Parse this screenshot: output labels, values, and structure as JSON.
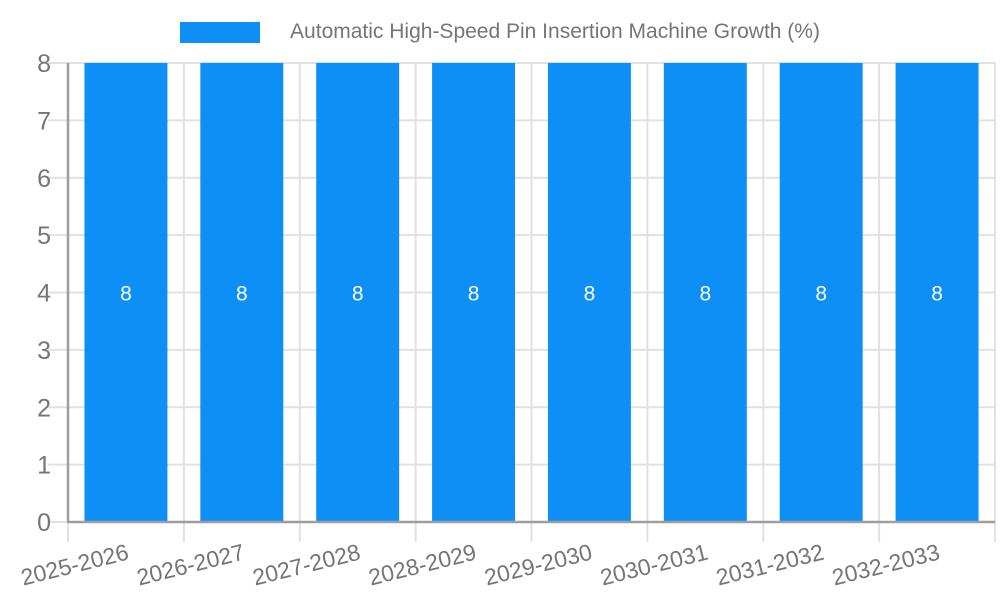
{
  "legend": {
    "label": "Automatic High-Speed Pin Insertion Machine Growth (%)"
  },
  "colors": {
    "bar": "#0d8ff5",
    "bar_label": "#ffffff",
    "axis_text": "#757575",
    "axis_line": "#9e9e9e",
    "gridline": "#e1e1e1"
  },
  "chart_data": {
    "type": "bar",
    "title": "Automatic High-Speed Pin Insertion Machine Growth (%)",
    "series_name": "Automatic High-Speed Pin Insertion Machine Growth (%)",
    "categories": [
      "2025-2026",
      "2026-2027",
      "2027-2028",
      "2028-2029",
      "2029-2030",
      "2030-2031",
      "2031-2032",
      "2032-2033"
    ],
    "values": [
      8,
      8,
      8,
      8,
      8,
      8,
      8,
      8
    ],
    "bar_value_labels": [
      "8",
      "8",
      "8",
      "8",
      "8",
      "8",
      "8",
      "8"
    ],
    "xlabel": "",
    "ylabel": "",
    "ylim": [
      0,
      8
    ],
    "yticks": [
      0,
      1,
      2,
      3,
      4,
      5,
      6,
      7,
      8
    ],
    "grid": true,
    "legend_position": "top",
    "x_label_rotation_deg": -14
  }
}
